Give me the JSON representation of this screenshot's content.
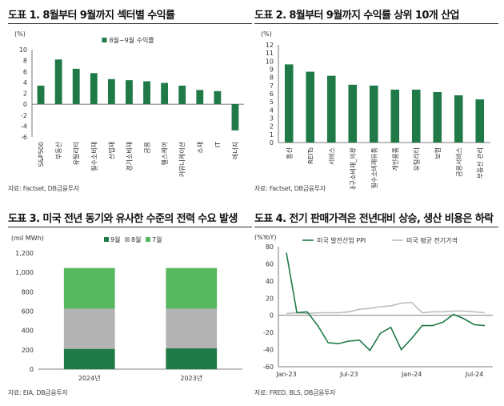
{
  "charts": [
    {
      "heading": "도표 1. 8월부터 9월까지 섹터별 수익률",
      "source": "자료: Factset, DB금융투자",
      "chart_data": {
        "type": "bar",
        "unit": "(%)",
        "legend": [
          "8월~9월 수익률"
        ],
        "legend_position": "top",
        "color": "#1f7a47",
        "categories": [
          "S&P500",
          "부동산",
          "유틸리티",
          "필수소비재",
          "산업재",
          "경기소비재",
          "금융",
          "헬스케어",
          "커뮤니케이션",
          "소재",
          "IT",
          "에너지"
        ],
        "values": [
          3.4,
          8.2,
          6.5,
          5.7,
          4.6,
          4.4,
          4.2,
          3.9,
          3.4,
          2.6,
          2.4,
          -4.8
        ],
        "ylim": [
          -6,
          10
        ],
        "yticks": [
          -6,
          -4,
          -2,
          0,
          2,
          4,
          6,
          8,
          10
        ]
      }
    },
    {
      "heading": "도표 2. 8월부터 9월까지 수익률 상위 10개 산업",
      "source": "자료: Factset, DB금융투자",
      "chart_data": {
        "type": "bar",
        "unit": "(%)",
        "color": "#1f7a47",
        "categories": [
          "통신",
          "REITs",
          "서비스",
          "내구소비재_의류",
          "필수소비재유통",
          "개인용품",
          "유틸리티",
          "보험",
          "금융서비스",
          "부동산 관리"
        ],
        "values": [
          9.6,
          8.7,
          8.2,
          7.1,
          7.0,
          6.5,
          6.5,
          6.2,
          5.8,
          5.3
        ],
        "ylim": [
          0,
          12
        ],
        "yticks": [
          0,
          1,
          2,
          3,
          4,
          5,
          6,
          7,
          8,
          9,
          10,
          11,
          12
        ]
      }
    },
    {
      "heading": "도표 3. 미국 전년 동기와 유사한 수준의 전력 수요 발생",
      "source": "자료: EIA, DB금융투자",
      "chart_data": {
        "type": "bar",
        "stacked": true,
        "unit": "(mil MWh)",
        "legend_position": "top",
        "categories": [
          "2024년",
          "2023년"
        ],
        "series": [
          {
            "name": "9월",
            "color": "#1f7a47",
            "values": [
              210,
              215
            ]
          },
          {
            "name": "8월",
            "color": "#b3b3b3",
            "values": [
              415,
              410
            ]
          },
          {
            "name": "7월",
            "color": "#57b85f",
            "values": [
              420,
              420
            ]
          }
        ],
        "ylim": [
          0,
          1200
        ],
        "yticks": [
          0,
          200,
          400,
          600,
          800,
          1000,
          1200
        ],
        "ytick_labels": [
          "0",
          "200",
          "400",
          "600",
          "800",
          "1,000",
          "1,200"
        ]
      }
    },
    {
      "heading": "도표 4. 전기 판매가격은 전년대비 상승, 생산 비용은 하락",
      "source": "자료: FRED, BLS, DB금융투자",
      "chart_data": {
        "type": "line",
        "unit": "(%YoY)",
        "legend_position": "top",
        "xticks": [
          "Jan-23",
          "Jul-23",
          "Jan-24",
          "Jul-24"
        ],
        "xtick_pos": [
          0,
          6,
          12,
          18
        ],
        "ylim": [
          -60,
          80
        ],
        "yticks": [
          -60,
          -40,
          -20,
          0,
          20,
          40,
          60,
          80
        ],
        "series": [
          {
            "name": "미국 발전산업 PPI",
            "color": "#1f7a47",
            "x": [
              0,
              1,
              2,
              3,
              4,
              5,
              6,
              7,
              8,
              9,
              10,
              11,
              12,
              13,
              14,
              15,
              16,
              17,
              18,
              19
            ],
            "y": [
              73,
              3,
              4,
              -12,
              -32,
              -33,
              -30,
              -29,
              -41,
              -21,
              -14,
              -40,
              -27,
              -12,
              -12,
              -8,
              1,
              -4,
              -11,
              -12
            ]
          },
          {
            "name": "미국 평균 전기가격",
            "color": "#bdbdbd",
            "x": [
              0,
              1,
              2,
              3,
              4,
              5,
              6,
              7,
              8,
              9,
              10,
              11,
              12,
              13,
              14,
              15,
              16,
              17,
              18,
              19
            ],
            "y": [
              2,
              3,
              2,
              3,
              3,
              3,
              4,
              7,
              8,
              10,
              11,
              14,
              15,
              3,
              4,
              4,
              5,
              5,
              4,
              3
            ]
          }
        ]
      }
    }
  ]
}
